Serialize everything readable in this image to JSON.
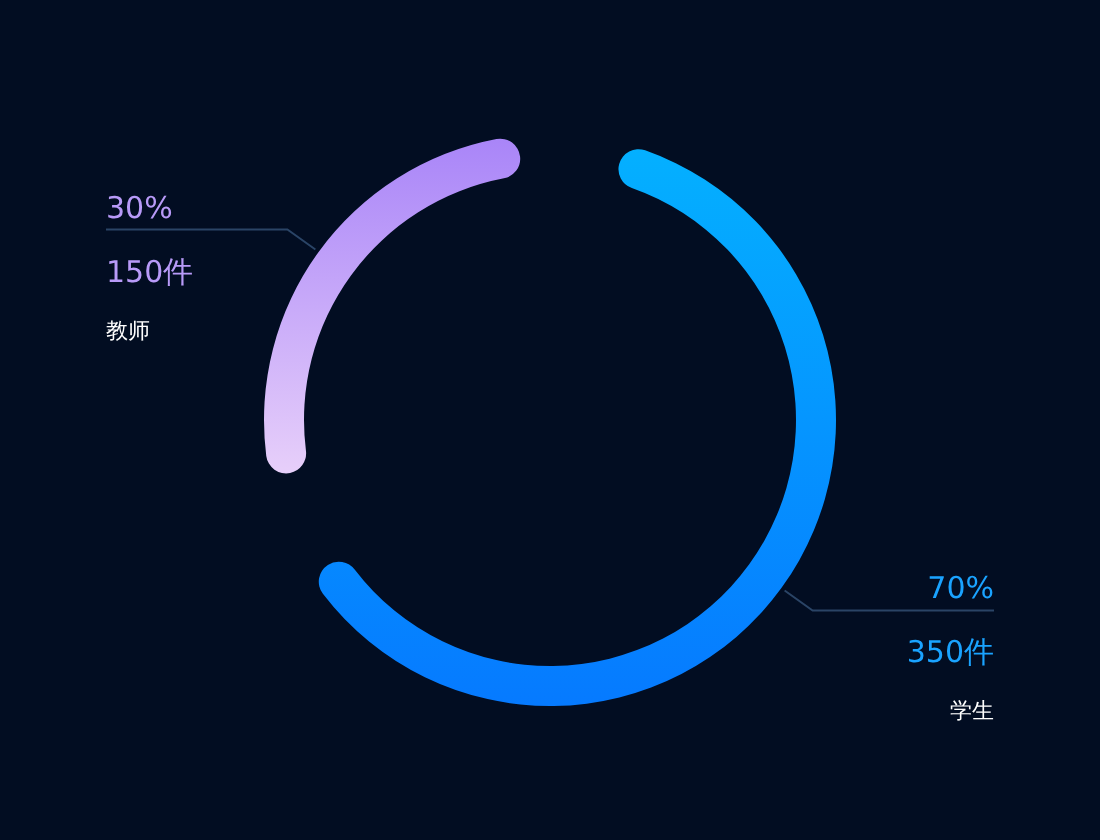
{
  "chart_data": {
    "type": "donut",
    "categories": [
      "学生",
      "教师"
    ],
    "values": [
      350,
      150
    ],
    "value_labels": [
      "70%\n350件",
      "30%\n150件"
    ],
    "colors": [
      "#0a8cff",
      "#b89af8"
    ],
    "legend": false
  }
}
